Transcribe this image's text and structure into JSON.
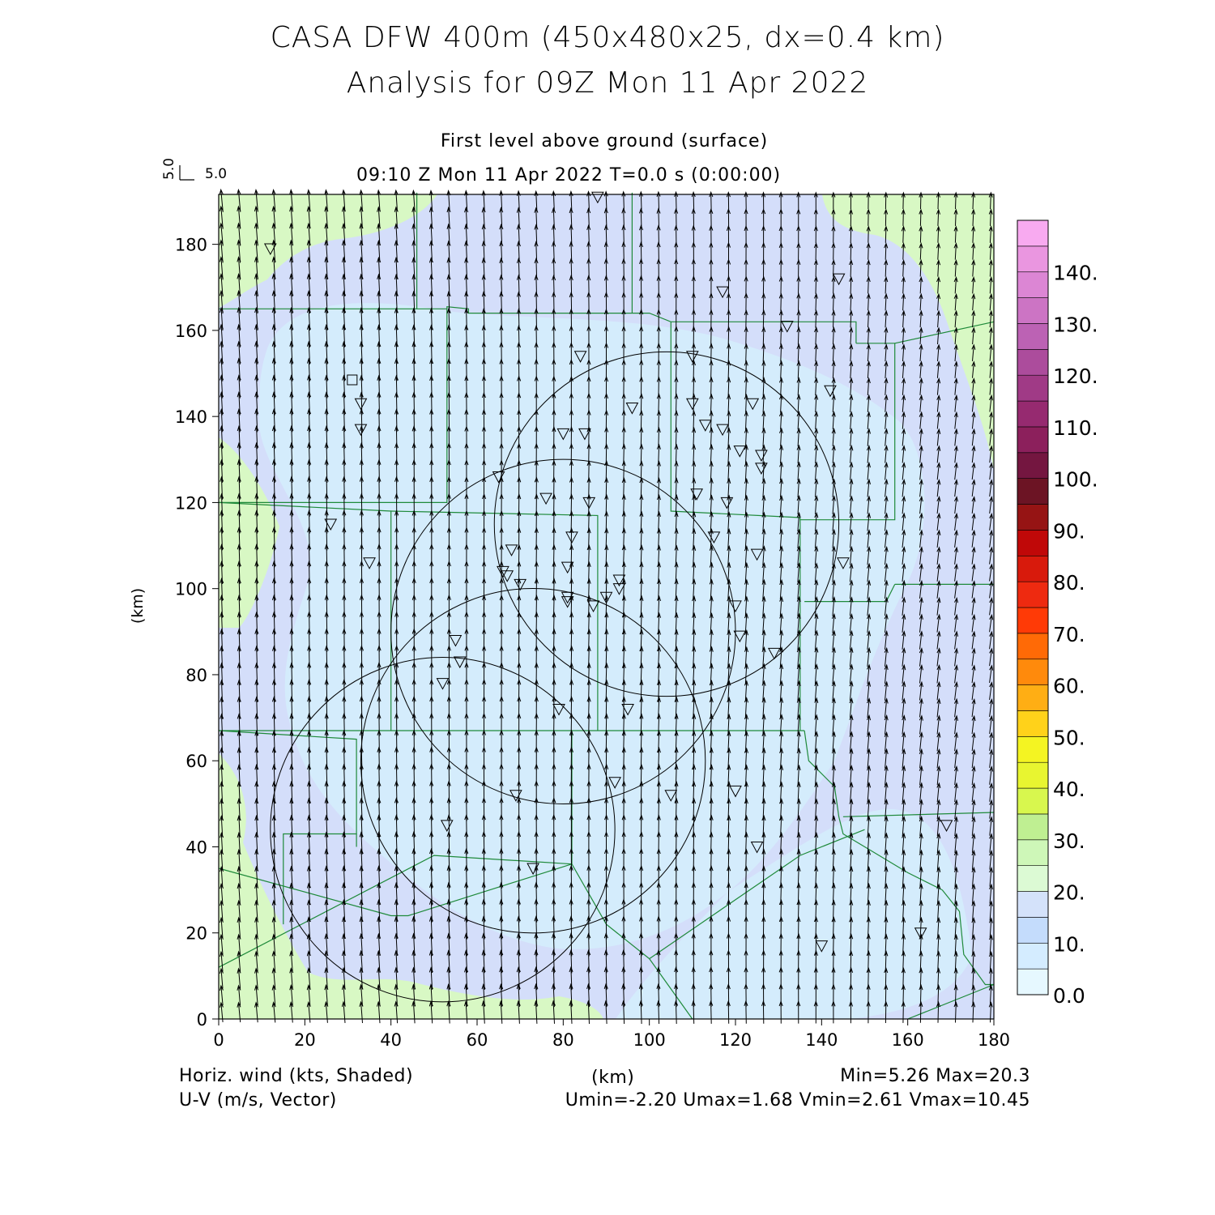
{
  "title_line1": "CASA DFW 400m (450x480x25, dx=0.4 km)",
  "title_line2": "Analysis for 09Z Mon 11 Apr 2022",
  "level_label": "First level above ground (surface)",
  "time_label": "09:10 Z Mon 11 Apr 2022   T=0.0 s (0:00:00)",
  "vector_key": {
    "u": "5.0",
    "v": "5.0"
  },
  "y_axis_label": "(km)",
  "x_axis_label": "(km)",
  "x_ticks": [
    "0",
    "20",
    "40",
    "60",
    "80",
    "100",
    "120",
    "140",
    "160",
    "180"
  ],
  "y_ticks": [
    "0",
    "20",
    "40",
    "60",
    "80",
    "100",
    "120",
    "140",
    "160",
    "180"
  ],
  "colorbar_labels": [
    "0.0",
    "10.",
    "20.",
    "30.",
    "40.",
    "50.",
    "60.",
    "70.",
    "80.",
    "90.",
    "100.",
    "110.",
    "120.",
    "130.",
    "140."
  ],
  "colorbar_colors": [
    "#e6f8ff",
    "#d4ecff",
    "#c4dcfc",
    "#d4e2fa",
    "#dcfad4",
    "#cef7b8",
    "#bfef92",
    "#d8f74e",
    "#e8f530",
    "#f4f422",
    "#ffd21a",
    "#ffae14",
    "#ff8a0c",
    "#ff6a06",
    "#ff3a06",
    "#ee2a10",
    "#d81a0c",
    "#c00808",
    "#961414",
    "#6c1424",
    "#741640",
    "#8c205c",
    "#962a70",
    "#a03a86",
    "#ac4c9c",
    "#bc62b4",
    "#cc74c4",
    "#dc86d4",
    "#ea96e0",
    "#f8aaf0"
  ],
  "footer_left_1": "Horiz. wind (kts, Shaded)",
  "footer_left_2": "U-V (m/s, Vector)",
  "footer_center": "(km)",
  "footer_right_1": "Min=5.26 Max=20.3",
  "footer_right_2": "Umin=-2.20 Umax=1.68 Vmin=2.61 Vmax=10.45",
  "shading_colors": {
    "light": "#d4ecfc",
    "mid": "#d4defa",
    "green": "#d8f8c4",
    "border": "#1f8a3a"
  }
}
